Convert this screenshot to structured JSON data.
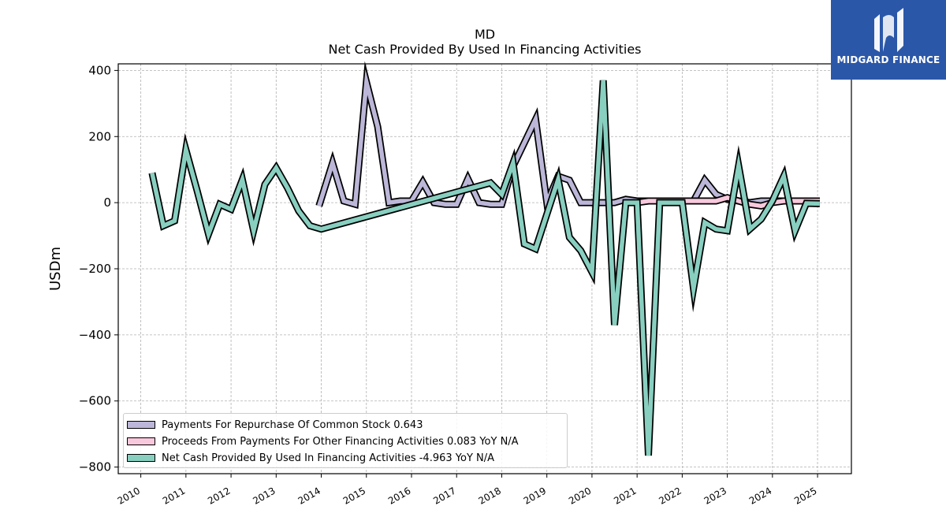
{
  "chart_data": {
    "type": "line",
    "title": "MD",
    "subtitle": "Net Cash Provided By Used In Financing Activities",
    "ylabel": "USDm",
    "ylim": [
      -820,
      420
    ],
    "yticks": [
      400,
      200,
      0,
      -200,
      -400,
      -600,
      -800
    ],
    "ytick_labels": [
      "400",
      "200",
      "0",
      "−200",
      "−400",
      "−600",
      "−800"
    ],
    "xlim": [
      2009.5,
      2025.75
    ],
    "xticks": [
      2010,
      2011,
      2012,
      2013,
      2014,
      2015,
      2016,
      2017,
      2018,
      2019,
      2020,
      2021,
      2022,
      2023,
      2024,
      2025
    ],
    "grid": true,
    "legend_placement": "lower-left",
    "series": [
      {
        "name": "Payments For Repurchase Of Common Stock",
        "legend_label": "Payments For Repurchase Of Common Stock  0.643",
        "color": "#bcb7d8",
        "points": [
          [
            2013.95,
            -10
          ],
          [
            2014.25,
            120
          ],
          [
            2014.5,
            5
          ],
          [
            2014.75,
            -5
          ],
          [
            2015.0,
            365
          ],
          [
            2015.25,
            230
          ],
          [
            2015.5,
            0
          ],
          [
            2015.75,
            5
          ],
          [
            2016.0,
            5
          ],
          [
            2016.25,
            62
          ],
          [
            2016.5,
            0
          ],
          [
            2016.75,
            -5
          ],
          [
            2017.0,
            -5
          ],
          [
            2017.25,
            72
          ],
          [
            2017.5,
            0
          ],
          [
            2017.75,
            -5
          ],
          [
            2018.0,
            -5
          ],
          [
            2018.25,
            110
          ],
          [
            2018.75,
            252
          ],
          [
            2019.0,
            0
          ],
          [
            2019.25,
            80
          ],
          [
            2019.5,
            68
          ],
          [
            2019.75,
            0
          ],
          [
            2020.0,
            0
          ],
          [
            2020.25,
            0
          ],
          [
            2020.5,
            0
          ],
          [
            2020.75,
            10
          ],
          [
            2021.0,
            5
          ],
          [
            2021.25,
            5
          ],
          [
            2021.5,
            5
          ],
          [
            2021.75,
            5
          ],
          [
            2022.0,
            5
          ],
          [
            2022.25,
            5
          ],
          [
            2022.5,
            68
          ],
          [
            2022.75,
            25
          ],
          [
            2023.0,
            10
          ],
          [
            2023.25,
            5
          ],
          [
            2023.5,
            0
          ],
          [
            2023.75,
            5
          ],
          [
            2024.0,
            5
          ],
          [
            2024.25,
            5
          ],
          [
            2024.5,
            5
          ],
          [
            2024.75,
            5
          ],
          [
            2025.05,
            5
          ]
        ]
      },
      {
        "name": "Proceeds From Payments For Other Financing Activities",
        "legend_label": "Proceeds From Payments For Other Financing Activities  0.083 YoY N/A",
        "color": "#f8c8dc",
        "points": [
          [
            2021.0,
            0
          ],
          [
            2021.25,
            5
          ],
          [
            2021.5,
            5
          ],
          [
            2021.75,
            5
          ],
          [
            2022.0,
            5
          ],
          [
            2022.25,
            5
          ],
          [
            2022.5,
            5
          ],
          [
            2022.75,
            5
          ],
          [
            2023.0,
            15
          ],
          [
            2023.25,
            5
          ],
          [
            2023.5,
            -5
          ],
          [
            2023.75,
            -10
          ],
          [
            2024.0,
            0
          ],
          [
            2024.25,
            5
          ],
          [
            2024.5,
            5
          ],
          [
            2024.75,
            5
          ],
          [
            2025.05,
            5
          ]
        ]
      },
      {
        "name": "Net Cash Provided By Used In Financing Activities",
        "legend_label": "Net Cash Provided By Used In Financing Activities  -4.963 YoY N/A",
        "color": "#88cfc0",
        "points": [
          [
            2010.25,
            90
          ],
          [
            2010.5,
            -70
          ],
          [
            2010.75,
            -55
          ],
          [
            2011.0,
            160
          ],
          [
            2011.25,
            35
          ],
          [
            2011.5,
            -95
          ],
          [
            2011.75,
            -5
          ],
          [
            2012.0,
            -20
          ],
          [
            2012.25,
            70
          ],
          [
            2012.5,
            -85
          ],
          [
            2012.75,
            55
          ],
          [
            2013.0,
            105
          ],
          [
            2013.25,
            45
          ],
          [
            2013.5,
            -25
          ],
          [
            2013.75,
            -70
          ],
          [
            2014.0,
            -80
          ],
          [
            2017.75,
            60
          ],
          [
            2018.0,
            25
          ],
          [
            2018.25,
            120
          ],
          [
            2018.5,
            -125
          ],
          [
            2018.75,
            -140
          ],
          [
            2019.25,
            70
          ],
          [
            2019.5,
            -105
          ],
          [
            2019.75,
            -145
          ],
          [
            2020.0,
            -210
          ],
          [
            2020.25,
            370
          ],
          [
            2020.5,
            -370
          ],
          [
            2020.75,
            0
          ],
          [
            2021.0,
            0
          ],
          [
            2021.25,
            -765
          ],
          [
            2021.5,
            0
          ],
          [
            2021.75,
            0
          ],
          [
            2022.0,
            0
          ],
          [
            2022.25,
            -260
          ],
          [
            2022.5,
            -60
          ],
          [
            2022.75,
            -80
          ],
          [
            2023.0,
            -85
          ],
          [
            2023.25,
            112
          ],
          [
            2023.5,
            -80
          ],
          [
            2023.75,
            -50
          ],
          [
            2024.0,
            5
          ],
          [
            2024.25,
            80
          ],
          [
            2024.5,
            -85
          ],
          [
            2024.75,
            -2
          ],
          [
            2025.05,
            -3
          ]
        ]
      }
    ]
  },
  "logo": {
    "text": "MIDGARD FINANCE"
  }
}
